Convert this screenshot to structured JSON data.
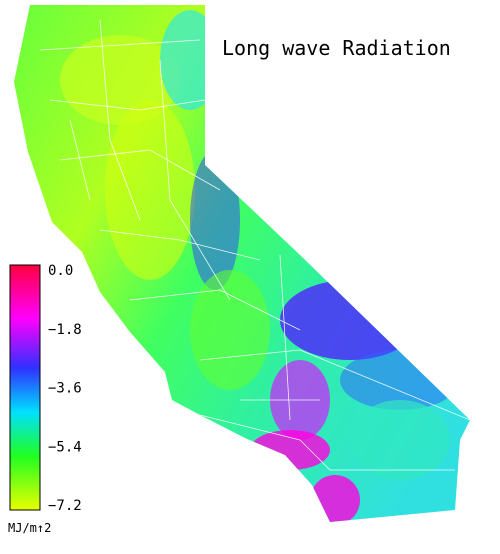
{
  "title": "Long wave Radiation",
  "legend": {
    "ticks": [
      "0.0",
      "−1.8",
      "−3.6",
      "−5.4",
      "−7.2"
    ],
    "unit": "MJ/m↑2"
  }
}
